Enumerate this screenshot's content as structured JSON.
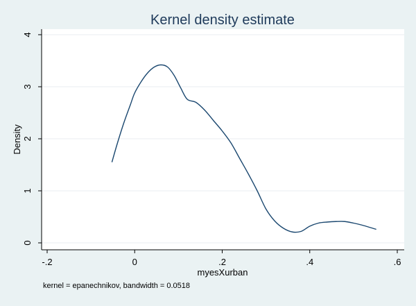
{
  "chart_data": {
    "type": "line",
    "title": "Kernel density estimate",
    "xlabel": "myesXurban",
    "ylabel": "Density",
    "note": "kernel = epanechnikov, bandwidth = 0.0518",
    "xlim": [
      -0.2,
      0.6
    ],
    "ylim": [
      0,
      4
    ],
    "x_ticks": [
      -0.2,
      0,
      0.2,
      0.4,
      0.6
    ],
    "x_tick_labels": [
      "-.2",
      "0",
      ".2",
      ".4",
      ".6"
    ],
    "y_ticks": [
      0,
      1,
      2,
      3,
      4
    ],
    "y_tick_labels": [
      "0",
      "1",
      "2",
      "3",
      "4"
    ],
    "grid": true,
    "series": [
      {
        "x": [
          -0.052,
          -0.04,
          -0.025,
          -0.01,
          0.0,
          0.015,
          0.03,
          0.045,
          0.06,
          0.075,
          0.09,
          0.105,
          0.12,
          0.14,
          0.16,
          0.18,
          0.2,
          0.22,
          0.24,
          0.26,
          0.28,
          0.3,
          0.32,
          0.34,
          0.36,
          0.38,
          0.4,
          0.42,
          0.44,
          0.46,
          0.48,
          0.5,
          0.52,
          0.552
        ],
        "y": [
          1.55,
          1.9,
          2.3,
          2.65,
          2.88,
          3.1,
          3.27,
          3.38,
          3.42,
          3.38,
          3.22,
          2.98,
          2.76,
          2.7,
          2.55,
          2.35,
          2.15,
          1.92,
          1.62,
          1.32,
          1.0,
          0.65,
          0.42,
          0.28,
          0.21,
          0.22,
          0.32,
          0.38,
          0.4,
          0.41,
          0.41,
          0.38,
          0.34,
          0.26
        ]
      }
    ],
    "colors": {
      "background": "#eaf2f3",
      "plot_area": "#ffffff",
      "line": "#1a476f",
      "title": "#1e3a5a",
      "grid": "#e8eef0",
      "axis": "#000000"
    }
  }
}
